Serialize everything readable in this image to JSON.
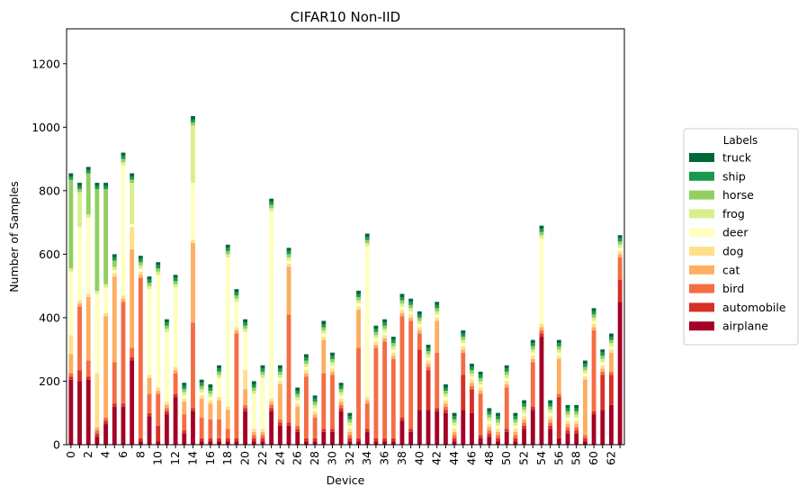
{
  "chart_data": {
    "type": "bar",
    "stacked": true,
    "title": "CIFAR10 Non-IID",
    "xlabel": "Device",
    "ylabel": "Number of Samples",
    "ylim": [
      0,
      1310
    ],
    "yticks": [
      0,
      200,
      400,
      600,
      800,
      1000,
      1200
    ],
    "xticks": [
      "0",
      "2",
      "4",
      "6",
      "8",
      "10",
      "12",
      "14",
      "16",
      "18",
      "20",
      "22",
      "24",
      "26",
      "28",
      "30",
      "32",
      "34",
      "36",
      "38",
      "40",
      "42",
      "44",
      "46",
      "48",
      "50",
      "52",
      "54",
      "56",
      "58",
      "60",
      "62"
    ],
    "categories": [
      "0",
      "1",
      "2",
      "3",
      "4",
      "5",
      "6",
      "7",
      "8",
      "9",
      "10",
      "11",
      "12",
      "13",
      "14",
      "15",
      "16",
      "17",
      "18",
      "19",
      "20",
      "21",
      "22",
      "23",
      "24",
      "25",
      "26",
      "27",
      "28",
      "29",
      "30",
      "31",
      "32",
      "33",
      "34",
      "35",
      "36",
      "37",
      "38",
      "39",
      "40",
      "41",
      "42",
      "43",
      "44",
      "45",
      "46",
      "47",
      "48",
      "49",
      "50",
      "51",
      "52",
      "53",
      "54",
      "55",
      "56",
      "57",
      "58",
      "59",
      "60",
      "61",
      "62",
      "63"
    ],
    "legend_title": "Labels",
    "legend_position": "right",
    "series": [
      {
        "name": "airplane",
        "color": "#a50026",
        "values": [
          205,
          200,
          205,
          25,
          65,
          120,
          120,
          265,
          10,
          90,
          10,
          95,
          150,
          35,
          105,
          10,
          10,
          10,
          10,
          10,
          105,
          10,
          10,
          105,
          60,
          60,
          40,
          10,
          10,
          40,
          40,
          105,
          10,
          10,
          40,
          10,
          10,
          10,
          75,
          40,
          110,
          110,
          105,
          100,
          10,
          110,
          100,
          20,
          25,
          10,
          40,
          10,
          50,
          110,
          340,
          50,
          20,
          35,
          35,
          10,
          95,
          110,
          125,
          450
        ]
      },
      {
        "name": "automobile",
        "color": "#d73027",
        "values": [
          10,
          35,
          10,
          10,
          10,
          10,
          10,
          10,
          10,
          10,
          50,
          10,
          10,
          10,
          10,
          10,
          10,
          10,
          10,
          10,
          10,
          10,
          10,
          10,
          10,
          10,
          10,
          10,
          10,
          10,
          10,
          10,
          10,
          10,
          10,
          10,
          10,
          10,
          10,
          10,
          190,
          125,
          10,
          10,
          10,
          110,
          75,
          10,
          10,
          10,
          10,
          10,
          10,
          10,
          10,
          10,
          130,
          10,
          10,
          10,
          10,
          110,
          95,
          70
        ]
      },
      {
        "name": "bird",
        "color": "#f46d43",
        "values": [
          10,
          200,
          50,
          10,
          10,
          130,
          320,
          30,
          505,
          60,
          100,
          10,
          65,
          50,
          270,
          65,
          60,
          60,
          30,
          330,
          10,
          10,
          10,
          10,
          10,
          340,
          10,
          195,
          65,
          175,
          170,
          10,
          10,
          285,
          80,
          285,
          305,
          250,
          320,
          340,
          50,
          10,
          175,
          10,
          10,
          70,
          10,
          130,
          10,
          10,
          130,
          10,
          10,
          140,
          10,
          10,
          10,
          10,
          10,
          10,
          255,
          10,
          10,
          70
        ]
      },
      {
        "name": "cat",
        "color": "#fdae61",
        "values": [
          60,
          10,
          200,
          10,
          320,
          270,
          10,
          310,
          10,
          50,
          10,
          10,
          10,
          40,
          250,
          60,
          50,
          60,
          60,
          10,
          50,
          10,
          10,
          10,
          110,
          150,
          60,
          10,
          10,
          105,
          10,
          10,
          10,
          120,
          10,
          10,
          10,
          10,
          10,
          10,
          10,
          10,
          100,
          10,
          10,
          10,
          10,
          10,
          10,
          10,
          10,
          10,
          10,
          10,
          10,
          10,
          110,
          10,
          10,
          175,
          10,
          10,
          60,
          10
        ]
      },
      {
        "name": "dog",
        "color": "#fee08b",
        "values": [
          60,
          10,
          10,
          170,
          10,
          10,
          10,
          70,
          10,
          10,
          10,
          10,
          10,
          10,
          10,
          10,
          10,
          10,
          10,
          10,
          60,
          10,
          10,
          10,
          10,
          10,
          10,
          10,
          10,
          10,
          10,
          10,
          10,
          10,
          10,
          10,
          10,
          10,
          10,
          10,
          10,
          10,
          10,
          10,
          10,
          10,
          10,
          10,
          10,
          10,
          10,
          10,
          10,
          10,
          10,
          10,
          10,
          10,
          10,
          10,
          10,
          10,
          10,
          10
        ]
      },
      {
        "name": "deer",
        "color": "#ffffbf",
        "values": [
          200,
          230,
          240,
          250,
          80,
          10,
          410,
          10,
          10,
          270,
          355,
          220,
          250,
          10,
          180,
          10,
          10,
          60,
          470,
          80,
          120,
          110,
          160,
          590,
          10,
          10,
          10,
          10,
          10,
          10,
          10,
          10,
          10,
          10,
          475,
          10,
          10,
          10,
          10,
          10,
          10,
          10,
          10,
          10,
          10,
          10,
          10,
          10,
          10,
          10,
          10,
          10,
          10,
          10,
          270,
          10,
          10,
          10,
          10,
          10,
          10,
          10,
          10,
          10
        ]
      },
      {
        "name": "frog",
        "color": "#d9ef8b",
        "values": [
          10,
          110,
          10,
          10,
          10,
          10,
          10,
          130,
          10,
          10,
          10,
          10,
          10,
          10,
          180,
          10,
          10,
          10,
          10,
          10,
          10,
          10,
          10,
          10,
          10,
          10,
          10,
          10,
          10,
          10,
          10,
          10,
          10,
          10,
          10,
          10,
          10,
          10,
          10,
          10,
          10,
          10,
          10,
          10,
          10,
          10,
          10,
          10,
          10,
          10,
          10,
          10,
          10,
          10,
          10,
          10,
          10,
          10,
          10,
          10,
          10,
          10,
          10,
          10
        ]
      },
      {
        "name": "horse",
        "color": "#91cf60",
        "values": [
          280,
          10,
          130,
          320,
          300,
          20,
          10,
          10,
          10,
          10,
          10,
          10,
          10,
          10,
          10,
          10,
          10,
          10,
          10,
          10,
          10,
          10,
          10,
          10,
          10,
          10,
          10,
          10,
          10,
          10,
          10,
          10,
          10,
          10,
          10,
          10,
          10,
          10,
          10,
          10,
          10,
          10,
          10,
          10,
          10,
          10,
          10,
          10,
          10,
          10,
          10,
          10,
          10,
          10,
          10,
          10,
          10,
          10,
          10,
          10,
          10,
          10,
          10,
          10
        ]
      },
      {
        "name": "ship",
        "color": "#1a9850",
        "values": [
          10,
          10,
          10,
          10,
          10,
          10,
          10,
          10,
          10,
          10,
          10,
          10,
          10,
          10,
          10,
          10,
          10,
          10,
          10,
          10,
          10,
          10,
          10,
          10,
          10,
          10,
          10,
          10,
          10,
          10,
          10,
          10,
          10,
          10,
          10,
          10,
          10,
          10,
          10,
          10,
          10,
          10,
          10,
          10,
          10,
          10,
          10,
          10,
          10,
          10,
          10,
          10,
          10,
          10,
          10,
          10,
          10,
          10,
          10,
          10,
          10,
          10,
          10,
          10
        ]
      },
      {
        "name": "truck",
        "color": "#006837",
        "values": [
          10,
          10,
          10,
          10,
          10,
          10,
          10,
          10,
          10,
          10,
          10,
          10,
          10,
          10,
          10,
          10,
          10,
          10,
          10,
          10,
          10,
          10,
          10,
          10,
          10,
          10,
          10,
          10,
          10,
          10,
          10,
          10,
          10,
          10,
          10,
          10,
          10,
          10,
          10,
          10,
          10,
          10,
          10,
          10,
          10,
          10,
          10,
          10,
          10,
          10,
          10,
          10,
          10,
          10,
          10,
          10,
          10,
          10,
          10,
          10,
          10,
          10,
          10,
          10
        ]
      }
    ]
  }
}
